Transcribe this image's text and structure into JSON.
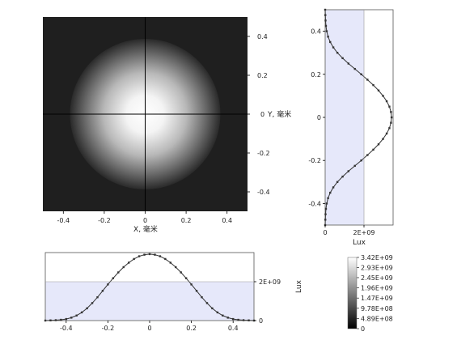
{
  "chart_data": [
    {
      "type": "heatmap",
      "description_free": true,
      "x": {
        "label": "X, 毫米",
        "range": [
          -0.5,
          0.5
        ],
        "ticks": [
          "-0.4",
          "-0.2",
          "0",
          "0.2",
          "0.4"
        ]
      },
      "y": {
        "label": "Y, 毫米",
        "range": [
          -0.5,
          0.5
        ],
        "ticks": [
          "0.4",
          "0.2",
          "0",
          "-0.2",
          "-0.4"
        ]
      },
      "peak_lux": 3420000000.0,
      "spot_radius_mm": 0.33,
      "background_color": "#1f1f1f",
      "crosshair": {
        "x": 0,
        "y": 0
      }
    },
    {
      "type": "line",
      "orientation": "vertical",
      "xlabel": "Lux",
      "xticks": [
        "0",
        "2E+09"
      ],
      "yticks": [
        "0.4",
        "0.2",
        "0",
        "-0.2",
        "-0.4"
      ],
      "ylim": [
        -0.5,
        0.5
      ],
      "xlim": [
        0,
        3500000000.0
      ],
      "shaded_threshold": 2000000000.0,
      "shade_color": "#e6e8fa",
      "series": [
        {
          "y": [
            -0.5,
            -0.475,
            -0.45,
            -0.425,
            -0.4,
            -0.375,
            -0.35,
            -0.325,
            -0.3,
            -0.275,
            -0.25,
            -0.225,
            -0.2,
            -0.175,
            -0.15,
            -0.125,
            -0.1,
            -0.075,
            -0.05,
            -0.025,
            0,
            0.025,
            0.05,
            0.075,
            0.1,
            0.125,
            0.15,
            0.175,
            0.2,
            0.225,
            0.25,
            0.275,
            0.3,
            0.325,
            0.35,
            0.375,
            0.4,
            0.425,
            0.45,
            0.475,
            0.5
          ],
          "values": [
            0.0,
            10000000.0,
            20000000.0,
            40000000.0,
            80000000.0,
            150000000.0,
            260000000.0,
            420000000.0,
            630000000.0,
            900000000.0,
            1200000000.0,
            1530000000.0,
            1860000000.0,
            2180000000.0,
            2480000000.0,
            2750000000.0,
            2980000000.0,
            3170000000.0,
            3310000000.0,
            3390000000.0,
            3420000000.0,
            3390000000.0,
            3310000000.0,
            3170000000.0,
            2980000000.0,
            2750000000.0,
            2480000000.0,
            2180000000.0,
            1860000000.0,
            1530000000.0,
            1200000000.0,
            900000000.0,
            630000000.0,
            420000000.0,
            260000000.0,
            150000000.0,
            80000000.0,
            40000000.0,
            20000000.0,
            10000000.0,
            0.0
          ]
        }
      ]
    },
    {
      "type": "line",
      "orientation": "horizontal",
      "ylabel": "Lux",
      "xticks": [
        "-0.4",
        "-0.2",
        "0",
        "0.2",
        "0.4"
      ],
      "yticks": [
        "0",
        "2E+09"
      ],
      "xlim": [
        -0.5,
        0.5
      ],
      "ylim": [
        0,
        3500000000.0
      ],
      "shaded_threshold": 2000000000.0,
      "shade_color": "#e6e8fa",
      "series": [
        {
          "x": [
            -0.5,
            -0.475,
            -0.45,
            -0.425,
            -0.4,
            -0.375,
            -0.35,
            -0.325,
            -0.3,
            -0.275,
            -0.25,
            -0.225,
            -0.2,
            -0.175,
            -0.15,
            -0.125,
            -0.1,
            -0.075,
            -0.05,
            -0.025,
            0,
            0.025,
            0.05,
            0.075,
            0.1,
            0.125,
            0.15,
            0.175,
            0.2,
            0.225,
            0.25,
            0.275,
            0.3,
            0.325,
            0.35,
            0.375,
            0.4,
            0.425,
            0.45,
            0.475,
            0.5
          ],
          "values": [
            0.0,
            10000000.0,
            20000000.0,
            40000000.0,
            80000000.0,
            150000000.0,
            260000000.0,
            420000000.0,
            630000000.0,
            900000000.0,
            1200000000.0,
            1530000000.0,
            1860000000.0,
            2180000000.0,
            2480000000.0,
            2750000000.0,
            2980000000.0,
            3170000000.0,
            3310000000.0,
            3390000000.0,
            3420000000.0,
            3390000000.0,
            3310000000.0,
            3170000000.0,
            2980000000.0,
            2750000000.0,
            2480000000.0,
            2180000000.0,
            1860000000.0,
            1530000000.0,
            1200000000.0,
            900000000.0,
            630000000.0,
            420000000.0,
            260000000.0,
            150000000.0,
            80000000.0,
            40000000.0,
            20000000.0,
            10000000.0,
            0.0
          ]
        }
      ]
    },
    {
      "type": "colorbar",
      "labels": [
        "3.42E+09",
        "2.93E+09",
        "2.45E+09",
        "1.96E+09",
        "1.47E+09",
        "9.78E+08",
        "4.89E+08",
        "0"
      ],
      "values": [
        3420000000.0,
        2930000000.0,
        2450000000.0,
        1960000000.0,
        1470000000.0,
        978000000.0,
        489000000.0,
        0
      ]
    }
  ]
}
